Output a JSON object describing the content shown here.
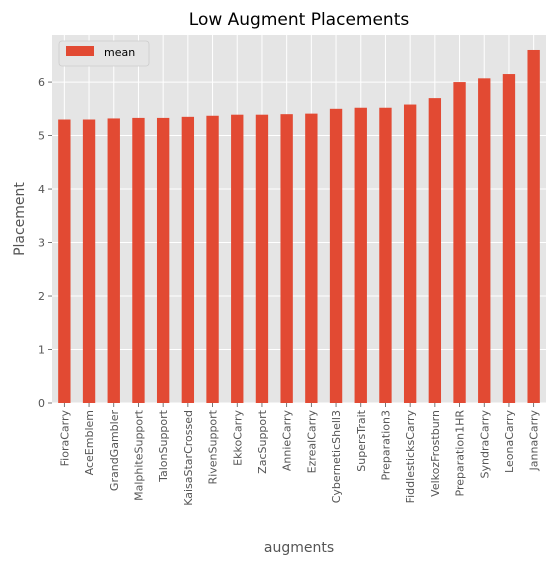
{
  "chart_data": {
    "type": "bar",
    "title": "Low Augment Placements",
    "xlabel": "augments",
    "ylabel": "Placement",
    "categories": [
      "FioraCarry",
      "AceEmblem",
      "GrandGambler",
      "MalphiteSupport",
      "TalonSupport",
      "KaisaStarCrossed",
      "RivenSupport",
      "EkkoCarry",
      "ZacSupport",
      "AnnieCarry",
      "EzrealCarry",
      "CyberneticShell3",
      "SupersTrait",
      "Preparation3",
      "FiddlesticksCarry",
      "VelkozFrostburn",
      "Preparation1HR",
      "SyndraCarry",
      "LeonaCarry",
      "JannaCarry"
    ],
    "series": [
      {
        "name": "mean",
        "values": [
          5.3,
          5.3,
          5.32,
          5.33,
          5.33,
          5.35,
          5.37,
          5.39,
          5.39,
          5.4,
          5.41,
          5.5,
          5.52,
          5.52,
          5.58,
          5.7,
          6.0,
          6.07,
          6.15,
          6.6
        ]
      }
    ],
    "ylim": [
      0,
      6.88
    ],
    "yticks": [
      0,
      1,
      2,
      3,
      4,
      5,
      6
    ],
    "grid": true,
    "legend_position": "top-left",
    "colors": {
      "bar": "#E24A33",
      "background": "#E5E5E5",
      "grid": "#FFFFFF"
    }
  }
}
